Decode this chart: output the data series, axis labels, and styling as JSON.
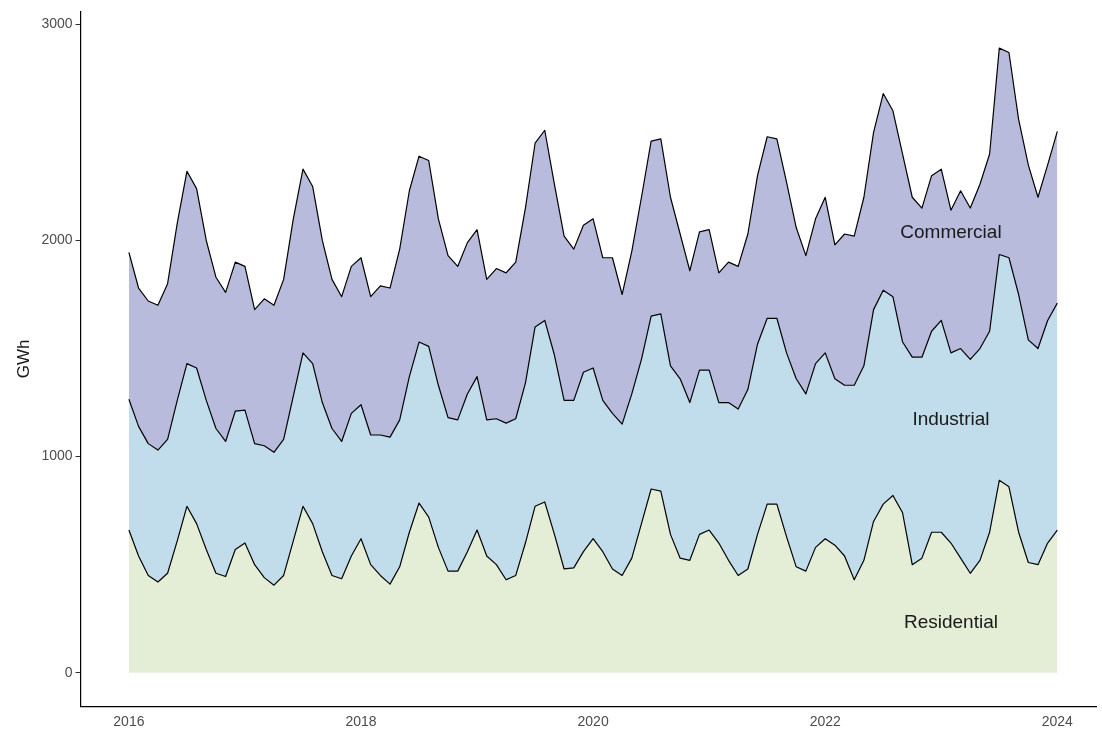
{
  "chart_data": {
    "type": "area",
    "stacked": true,
    "ylabel": "GWh",
    "x": [
      "2016-01",
      "2016-02",
      "2016-03",
      "2016-04",
      "2016-05",
      "2016-06",
      "2016-07",
      "2016-08",
      "2016-09",
      "2016-10",
      "2016-11",
      "2016-12",
      "2017-01",
      "2017-02",
      "2017-03",
      "2017-04",
      "2017-05",
      "2017-06",
      "2017-07",
      "2017-08",
      "2017-09",
      "2017-10",
      "2017-11",
      "2017-12",
      "2018-01",
      "2018-02",
      "2018-03",
      "2018-04",
      "2018-05",
      "2018-06",
      "2018-07",
      "2018-08",
      "2018-09",
      "2018-10",
      "2018-11",
      "2018-12",
      "2019-01",
      "2019-02",
      "2019-03",
      "2019-04",
      "2019-05",
      "2019-06",
      "2019-07",
      "2019-08",
      "2019-09",
      "2019-10",
      "2019-11",
      "2019-12",
      "2020-01",
      "2020-02",
      "2020-03",
      "2020-04",
      "2020-05",
      "2020-06",
      "2020-07",
      "2020-08",
      "2020-09",
      "2020-10",
      "2020-11",
      "2020-12",
      "2021-01",
      "2021-02",
      "2021-03",
      "2021-04",
      "2021-05",
      "2021-06",
      "2021-07",
      "2021-08",
      "2021-09",
      "2021-10",
      "2021-11",
      "2021-12",
      "2022-01",
      "2022-02",
      "2022-03",
      "2022-04",
      "2022-05",
      "2022-06",
      "2022-07",
      "2022-08",
      "2022-09",
      "2022-10",
      "2022-11",
      "2022-12",
      "2023-01",
      "2023-02",
      "2023-03",
      "2023-04",
      "2023-05",
      "2023-06",
      "2023-07",
      "2023-08",
      "2023-09",
      "2023-10",
      "2023-11",
      "2023-12",
      "2024-01"
    ],
    "series": [
      {
        "name": "Residential",
        "color": "#e4eed7",
        "values": [
          660,
          540,
          450,
          420,
          460,
          610,
          770,
          690,
          570,
          460,
          445,
          570,
          600,
          500,
          440,
          405,
          450,
          610,
          770,
          690,
          560,
          450,
          435,
          540,
          620,
          500,
          450,
          410,
          490,
          650,
          785,
          720,
          580,
          470,
          470,
          560,
          660,
          540,
          500,
          430,
          450,
          600,
          770,
          790,
          640,
          480,
          485,
          560,
          620,
          560,
          480,
          450,
          530,
          690,
          850,
          840,
          640,
          530,
          520,
          640,
          660,
          600,
          520,
          450,
          480,
          640,
          780,
          780,
          630,
          490,
          470,
          580,
          620,
          590,
          540,
          430,
          520,
          700,
          780,
          820,
          740,
          500,
          530,
          650,
          650,
          600,
          530,
          460,
          520,
          650,
          890,
          860,
          650,
          510,
          500,
          600,
          660
        ]
      },
      {
        "name": "Industrial",
        "color": "#c1dcea",
        "values": [
          605,
          600,
          610,
          610,
          620,
          650,
          660,
          720,
          690,
          670,
          625,
          640,
          615,
          560,
          610,
          615,
          630,
          670,
          710,
          740,
          690,
          680,
          635,
          660,
          620,
          600,
          650,
          680,
          680,
          720,
          745,
          790,
          750,
          710,
          700,
          730,
          710,
          630,
          675,
          725,
          725,
          740,
          830,
          840,
          830,
          780,
          775,
          830,
          790,
          700,
          720,
          700,
          760,
          760,
          800,
          820,
          780,
          830,
          730,
          760,
          740,
          650,
          730,
          770,
          830,
          880,
          860,
          860,
          850,
          870,
          820,
          850,
          860,
          770,
          790,
          900,
          900,
          980,
          990,
          920,
          790,
          960,
          930,
          930,
          980,
          880,
          970,
          990,
          980,
          930,
          1045,
          1060,
          1100,
          1030,
          1000,
          1030,
          1050
        ]
      },
      {
        "name": "Commercial",
        "color": "#b8bbdb",
        "values": [
          680,
          640,
          660,
          670,
          720,
          820,
          890,
          830,
          740,
          700,
          690,
          690,
          665,
          620,
          680,
          680,
          740,
          820,
          850,
          820,
          750,
          690,
          670,
          680,
          680,
          640,
          690,
          690,
          790,
          860,
          860,
          860,
          770,
          750,
          710,
          700,
          680,
          650,
          695,
          695,
          725,
          810,
          850,
          880,
          790,
          760,
          700,
          680,
          690,
          660,
          720,
          600,
          660,
          750,
          810,
          810,
          780,
          670,
          610,
          640,
          650,
          600,
          650,
          660,
          720,
          780,
          840,
          830,
          790,
          700,
          640,
          670,
          720,
          620,
          700,
          690,
          780,
          820,
          910,
          860,
          870,
          740,
          690,
          720,
          700,
          660,
          730,
          700,
          760,
          820,
          955,
          950,
          810,
          810,
          700,
          720,
          795
        ]
      }
    ],
    "xlim": [
      "2015-08",
      "2024-05"
    ],
    "xticks": [
      "2016",
      "2018",
      "2020",
      "2022",
      "2024"
    ],
    "ylim": [
      -155,
      3060
    ],
    "yticks": [
      0,
      1000,
      2000,
      3000
    ]
  }
}
